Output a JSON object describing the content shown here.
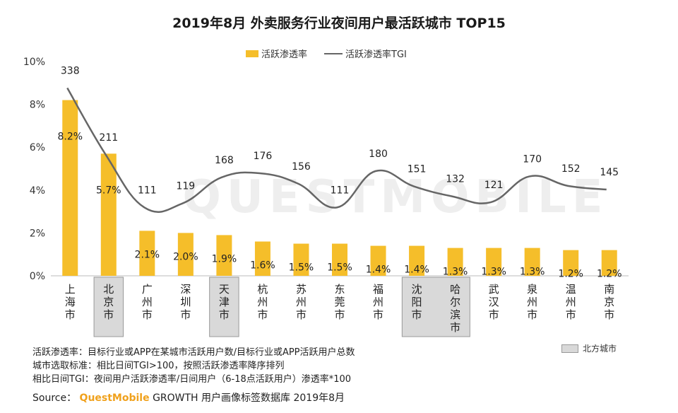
{
  "chart_data": {
    "type": "bar+line",
    "title": "2019年8月 外卖服务行业夜间用户最活跃城市 TOP15",
    "categories": [
      "上海市",
      "北京市",
      "广州市",
      "深圳市",
      "天津市",
      "杭州市",
      "苏州市",
      "东莞市",
      "福州市",
      "沈阳市",
      "哈尔滨市",
      "武汉市",
      "泉州市",
      "温州市",
      "南京市"
    ],
    "north_cities": [
      "北京市",
      "天津市",
      "沈阳市",
      "哈尔滨市"
    ],
    "series": [
      {
        "name": "活跃渗透率",
        "type": "bar",
        "axis": "left",
        "values": [
          8.2,
          5.7,
          2.1,
          2.0,
          1.9,
          1.6,
          1.5,
          1.5,
          1.4,
          1.4,
          1.3,
          1.3,
          1.3,
          1.2,
          1.2
        ],
        "labels": [
          "8.2%",
          "5.7%",
          "2.1%",
          "2.0%",
          "1.9%",
          "1.6%",
          "1.5%",
          "1.5%",
          "1.4%",
          "1.4%",
          "1.3%",
          "1.3%",
          "1.3%",
          "1.2%",
          "1.2%"
        ]
      },
      {
        "name": "活跃渗透率TGI",
        "type": "line",
        "axis": "secondary",
        "values": [
          338,
          211,
          111,
          119,
          168,
          176,
          156,
          111,
          180,
          151,
          132,
          121,
          170,
          152,
          145
        ]
      }
    ],
    "y_ticks": [
      "0%",
      "2%",
      "4%",
      "6%",
      "8%",
      "10%"
    ],
    "ylim": [
      0,
      10
    ],
    "colors": {
      "bar": "#F5BE2A",
      "line": "#666666",
      "north_fill": "#D9D9D9",
      "north_stroke": "#999999",
      "brand": "#F0A11C"
    }
  },
  "legend": {
    "bar": "活跃渗透率",
    "line": "活跃渗透率TGI",
    "north": "北方城市"
  },
  "notes": [
    "活跃渗透率：目标行业或APP在某城市活跃用户数/目标行业或APP活跃用户总数",
    "城市选取标准：相比日间TGI>100，按照活跃渗透率降序排列",
    "相比日间TGI：夜间用户活跃渗透率/日间用户（6-18点活跃用户）渗透率*100"
  ],
  "source": {
    "prefix": "Source：",
    "brand": "QuestMobile",
    "suffix": "GROWTH 用户画像标签数据库 2019年8月"
  },
  "watermark": "QUESTMOBILE"
}
